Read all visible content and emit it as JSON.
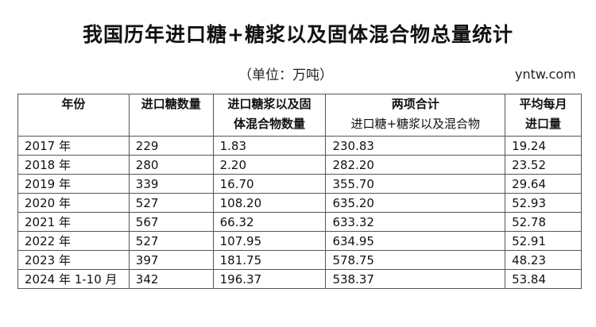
{
  "title": "我国历年进口糖+糖浆以及固体混合物总量统计",
  "unit": "（单位：万吨）",
  "site": "yntw.com",
  "table": {
    "headers": [
      {
        "line1": "年份",
        "line2": ""
      },
      {
        "line1": "进口糖数量",
        "line2": ""
      },
      {
        "line1": "进口糖浆以及固",
        "line2": "体混合物数量"
      },
      {
        "line1": "两项合计",
        "line2": "进口糖+糖浆以及混合物"
      },
      {
        "line1": "平均每月",
        "line2": "进口量"
      }
    ],
    "rows": [
      [
        "2017 年",
        "229",
        "1.83",
        "230.83",
        "19.24"
      ],
      [
        "2018 年",
        "280",
        "2.20",
        "282.20",
        "23.52"
      ],
      [
        "2019 年",
        "339",
        "16.70",
        "355.70",
        "29.64"
      ],
      [
        "2020 年",
        "527",
        "108.20",
        "635.20",
        "52.93"
      ],
      [
        "2021 年",
        "567",
        "66.32",
        "633.32",
        "52.78"
      ],
      [
        "2022 年",
        "527",
        "107.95",
        "634.95",
        "52.91"
      ],
      [
        "2023 年",
        "397",
        "181.75",
        "578.75",
        "48.23"
      ],
      [
        "2024 年 1-10 月",
        "342",
        "196.37",
        "538.37",
        "53.84"
      ]
    ]
  }
}
